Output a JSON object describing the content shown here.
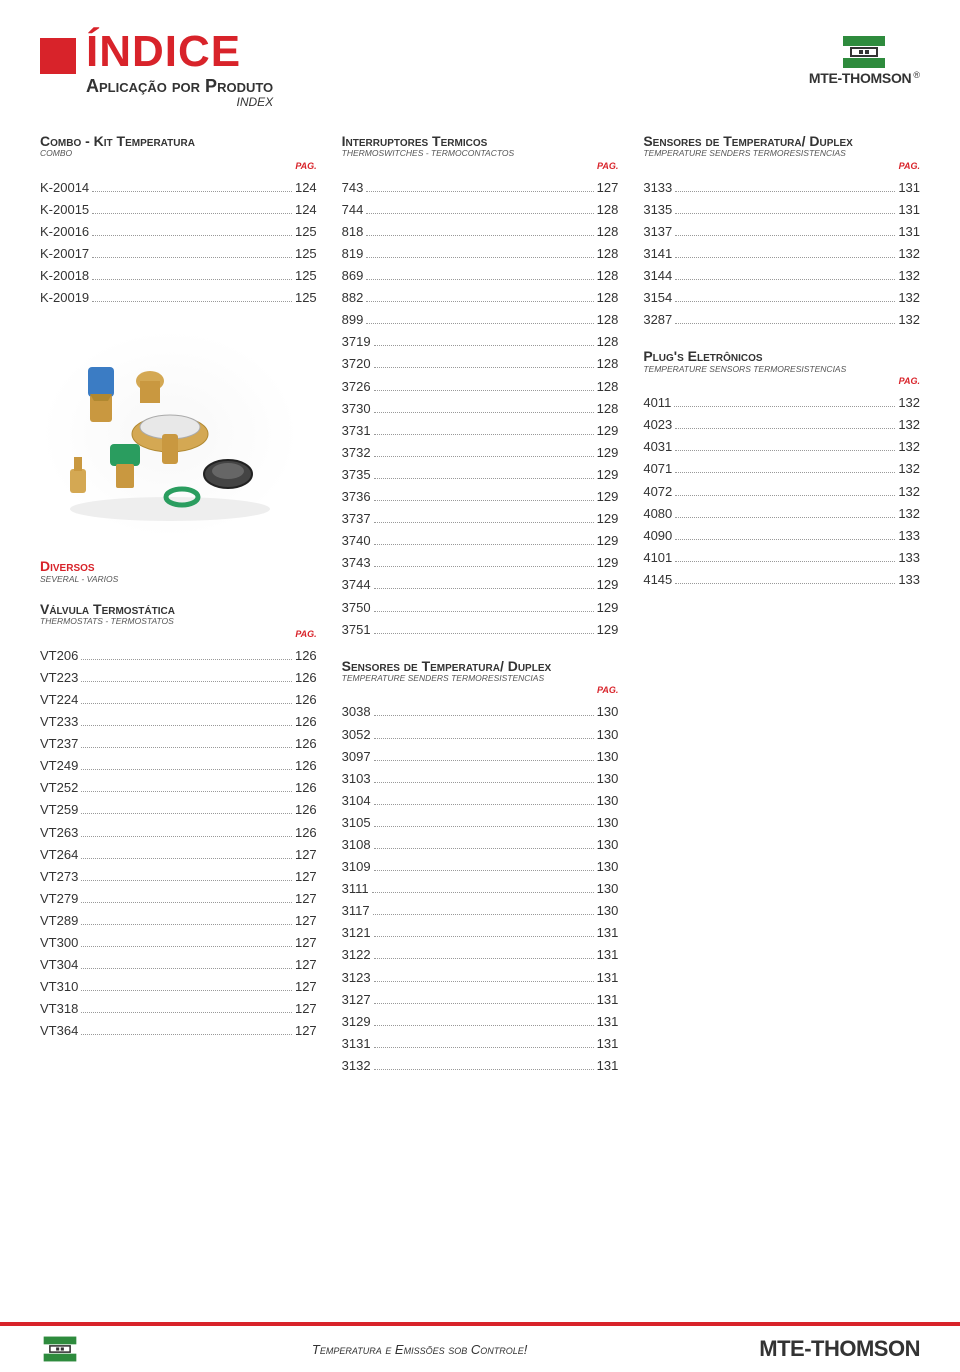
{
  "colors": {
    "red": "#d8232a",
    "text": "#333333",
    "subtext": "#555555",
    "dots": "#999999",
    "bg": "#ffffff"
  },
  "header": {
    "title": "ÍNDICE",
    "subtitle": "Aplicação por Produto",
    "subsub": "INDEX"
  },
  "brand": {
    "name": "MTE-THOMSON",
    "trademark": "®"
  },
  "pag_label": "PAG.",
  "sections": {
    "combo": {
      "title": "Combo - Kit Temperatura",
      "sub": "COMBO",
      "items": [
        {
          "label": "K-20014",
          "page": "124"
        },
        {
          "label": "K-20015",
          "page": "124"
        },
        {
          "label": "K-20016",
          "page": "125"
        },
        {
          "label": "K-20017",
          "page": "125"
        },
        {
          "label": "K-20018",
          "page": "125"
        },
        {
          "label": "K-20019",
          "page": "125"
        }
      ]
    },
    "diversos": {
      "title": "Diversos",
      "sub": "SEVERAL - VARIOS"
    },
    "valvula": {
      "title": "Válvula Termostática",
      "sub": "THERMOSTATS - TERMOSTATOS",
      "items": [
        {
          "label": "VT206",
          "page": "126"
        },
        {
          "label": "VT223",
          "page": "126"
        },
        {
          "label": "VT224",
          "page": "126"
        },
        {
          "label": "VT233",
          "page": "126"
        },
        {
          "label": "VT237",
          "page": "126"
        },
        {
          "label": "VT249",
          "page": "126"
        },
        {
          "label": "VT252",
          "page": "126"
        },
        {
          "label": "VT259",
          "page": "126"
        },
        {
          "label": "VT263",
          "page": "126"
        },
        {
          "label": "VT264",
          "page": "127"
        },
        {
          "label": "VT273",
          "page": "127"
        },
        {
          "label": "VT279",
          "page": "127"
        },
        {
          "label": "VT289",
          "page": "127"
        },
        {
          "label": "VT300",
          "page": "127"
        },
        {
          "label": "VT304",
          "page": "127"
        },
        {
          "label": "VT310",
          "page": "127"
        },
        {
          "label": "VT318",
          "page": "127"
        },
        {
          "label": "VT364",
          "page": "127"
        }
      ]
    },
    "interruptores": {
      "title": "Interruptores Termicos",
      "sub": "THERMOSWITCHES - TERMOCONTACTOS",
      "items": [
        {
          "label": "743",
          "page": "127"
        },
        {
          "label": "744",
          "page": "128"
        },
        {
          "label": "818",
          "page": "128"
        },
        {
          "label": "819",
          "page": "128"
        },
        {
          "label": "869",
          "page": "128"
        },
        {
          "label": "882",
          "page": "128"
        },
        {
          "label": "899",
          "page": "128"
        },
        {
          "label": "3719",
          "page": "128"
        },
        {
          "label": "3720",
          "page": "128"
        },
        {
          "label": "3726",
          "page": "128"
        },
        {
          "label": "3730",
          "page": "128"
        },
        {
          "label": "3731",
          "page": "129"
        },
        {
          "label": "3732",
          "page": "129"
        },
        {
          "label": "3735",
          "page": "129"
        },
        {
          "label": "3736",
          "page": "129"
        },
        {
          "label": "3737",
          "page": "129"
        },
        {
          "label": "3740",
          "page": "129"
        },
        {
          "label": "3743",
          "page": "129"
        },
        {
          "label": "3744",
          "page": "129"
        },
        {
          "label": "3750",
          "page": "129"
        },
        {
          "label": "3751",
          "page": "129"
        }
      ]
    },
    "sensores1": {
      "title": "Sensores de Temperatura/ Duplex",
      "sub": "TEMPERATURE SENDERS TERMORESISTENCIAS",
      "items": [
        {
          "label": "3038",
          "page": "130"
        },
        {
          "label": "3052",
          "page": "130"
        },
        {
          "label": "3097",
          "page": "130"
        },
        {
          "label": "3103",
          "page": "130"
        },
        {
          "label": "3104",
          "page": "130"
        },
        {
          "label": "3105",
          "page": "130"
        },
        {
          "label": "3108",
          "page": "130"
        },
        {
          "label": "3109",
          "page": "130"
        },
        {
          "label": "3111",
          "page": "130"
        },
        {
          "label": "3117",
          "page": "130"
        },
        {
          "label": "3121",
          "page": "131"
        },
        {
          "label": "3122",
          "page": "131"
        },
        {
          "label": "3123",
          "page": "131"
        },
        {
          "label": "3127",
          "page": "131"
        },
        {
          "label": "3129",
          "page": "131"
        },
        {
          "label": "3131",
          "page": "131"
        },
        {
          "label": "3132",
          "page": "131"
        }
      ]
    },
    "sensores2": {
      "title": "Sensores de Temperatura/ Duplex",
      "sub": "TEMPERATURE SENDERS TERMORESISTENCIAS",
      "items": [
        {
          "label": "3133",
          "page": "131"
        },
        {
          "label": "3135",
          "page": "131"
        },
        {
          "label": "3137",
          "page": "131"
        },
        {
          "label": "3141",
          "page": "132"
        },
        {
          "label": "3144",
          "page": "132"
        },
        {
          "label": "3154",
          "page": "132"
        },
        {
          "label": "3287",
          "page": "132"
        }
      ]
    },
    "plugs": {
      "title": "Plug's Eletrônicos",
      "sub": "TEMPERATURE SENSORS TERMORESISTENCIAS",
      "items": [
        {
          "label": "4011",
          "page": "132"
        },
        {
          "label": "4023",
          "page": "132"
        },
        {
          "label": "4031",
          "page": "132"
        },
        {
          "label": "4071",
          "page": "132"
        },
        {
          "label": "4072",
          "page": "132"
        },
        {
          "label": "4080",
          "page": "132"
        },
        {
          "label": "4090",
          "page": "133"
        },
        {
          "label": "4101",
          "page": "133"
        },
        {
          "label": "4145",
          "page": "133"
        }
      ]
    }
  },
  "footer": {
    "tagline": "Temperatura e Emissões sob Controle!",
    "brand": "MTE-THOMSON"
  }
}
